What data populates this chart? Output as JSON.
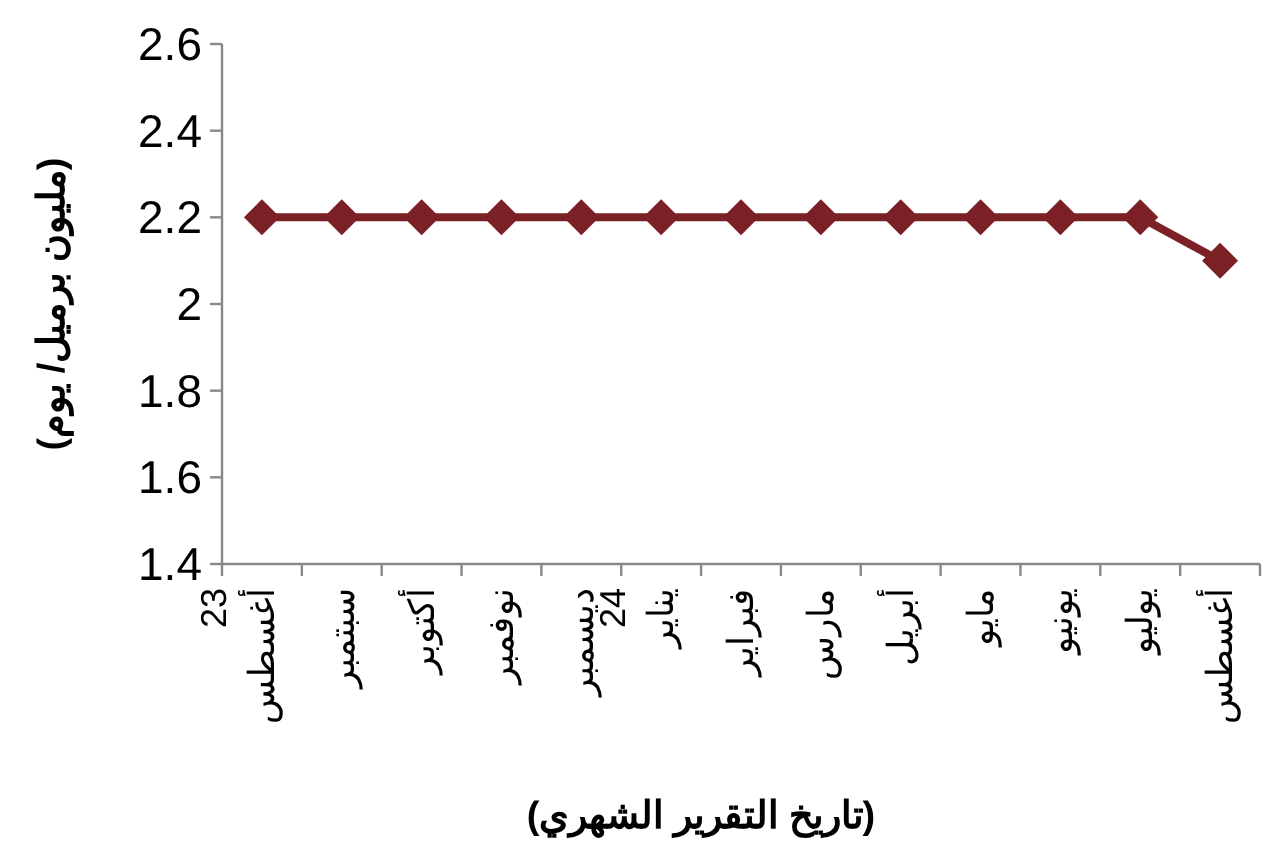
{
  "chart_data": {
    "type": "line",
    "xlabel": "(تاريخ التقرير الشهري)",
    "ylabel": "(مليون برميل/ يوم)",
    "categories": [
      "أغسطس 23",
      "سبتمبر",
      "أكتوبر",
      "نوفمبر",
      "ديسمبر",
      "يناير 24",
      "فبراير",
      "مارس",
      "أبريل",
      "مايو",
      "يونيو",
      "يوليو",
      "أغسطس"
    ],
    "series": [
      {
        "color": "#7b2025",
        "values": [
          2.2,
          2.2,
          2.2,
          2.2,
          2.2,
          2.2,
          2.2,
          2.2,
          2.2,
          2.2,
          2.2,
          2.2,
          2.1
        ]
      }
    ],
    "ylim": [
      1.4,
      2.6
    ],
    "yticks": [
      1.4,
      1.6,
      1.8,
      2,
      2.2,
      2.4,
      2.6
    ],
    "marker": "diamond",
    "line_style": "solid",
    "grid": false
  }
}
